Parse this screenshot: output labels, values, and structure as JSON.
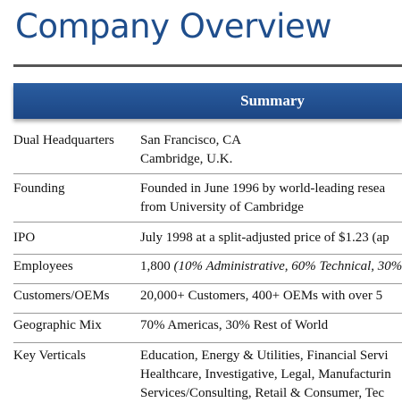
{
  "header": {
    "title": "Company Overview"
  },
  "table": {
    "header": "Summary",
    "rows": [
      {
        "label": "Dual Headquarters",
        "lines": [
          "San Francisco, CA",
          "Cambridge, U.K."
        ]
      },
      {
        "label": "Founding",
        "lines": [
          "Founded in June 1996 by world-leading resea",
          "from University of Cambridge"
        ]
      },
      {
        "label": "IPO",
        "lines": [
          "July 1998 at a split-adjusted price of $1.23 (ap"
        ]
      },
      {
        "label": "Employees",
        "lines": [
          "1,800"
        ],
        "italic_note": "(10% Administrative, 60% Technical, 30%"
      },
      {
        "label": "Customers/OEMs",
        "lines": [
          "20,000+ Customers, 400+ OEMs with over 5"
        ]
      },
      {
        "label": "Geographic Mix",
        "lines": [
          "70% Americas, 30% Rest of World"
        ]
      },
      {
        "label": "Key Verticals",
        "lines": [
          "Education, Energy & Utilities, Financial Servi",
          "Healthcare, Investigative, Legal, Manufacturin",
          "Services/Consulting, Retail & Consumer, Tec"
        ]
      }
    ]
  }
}
